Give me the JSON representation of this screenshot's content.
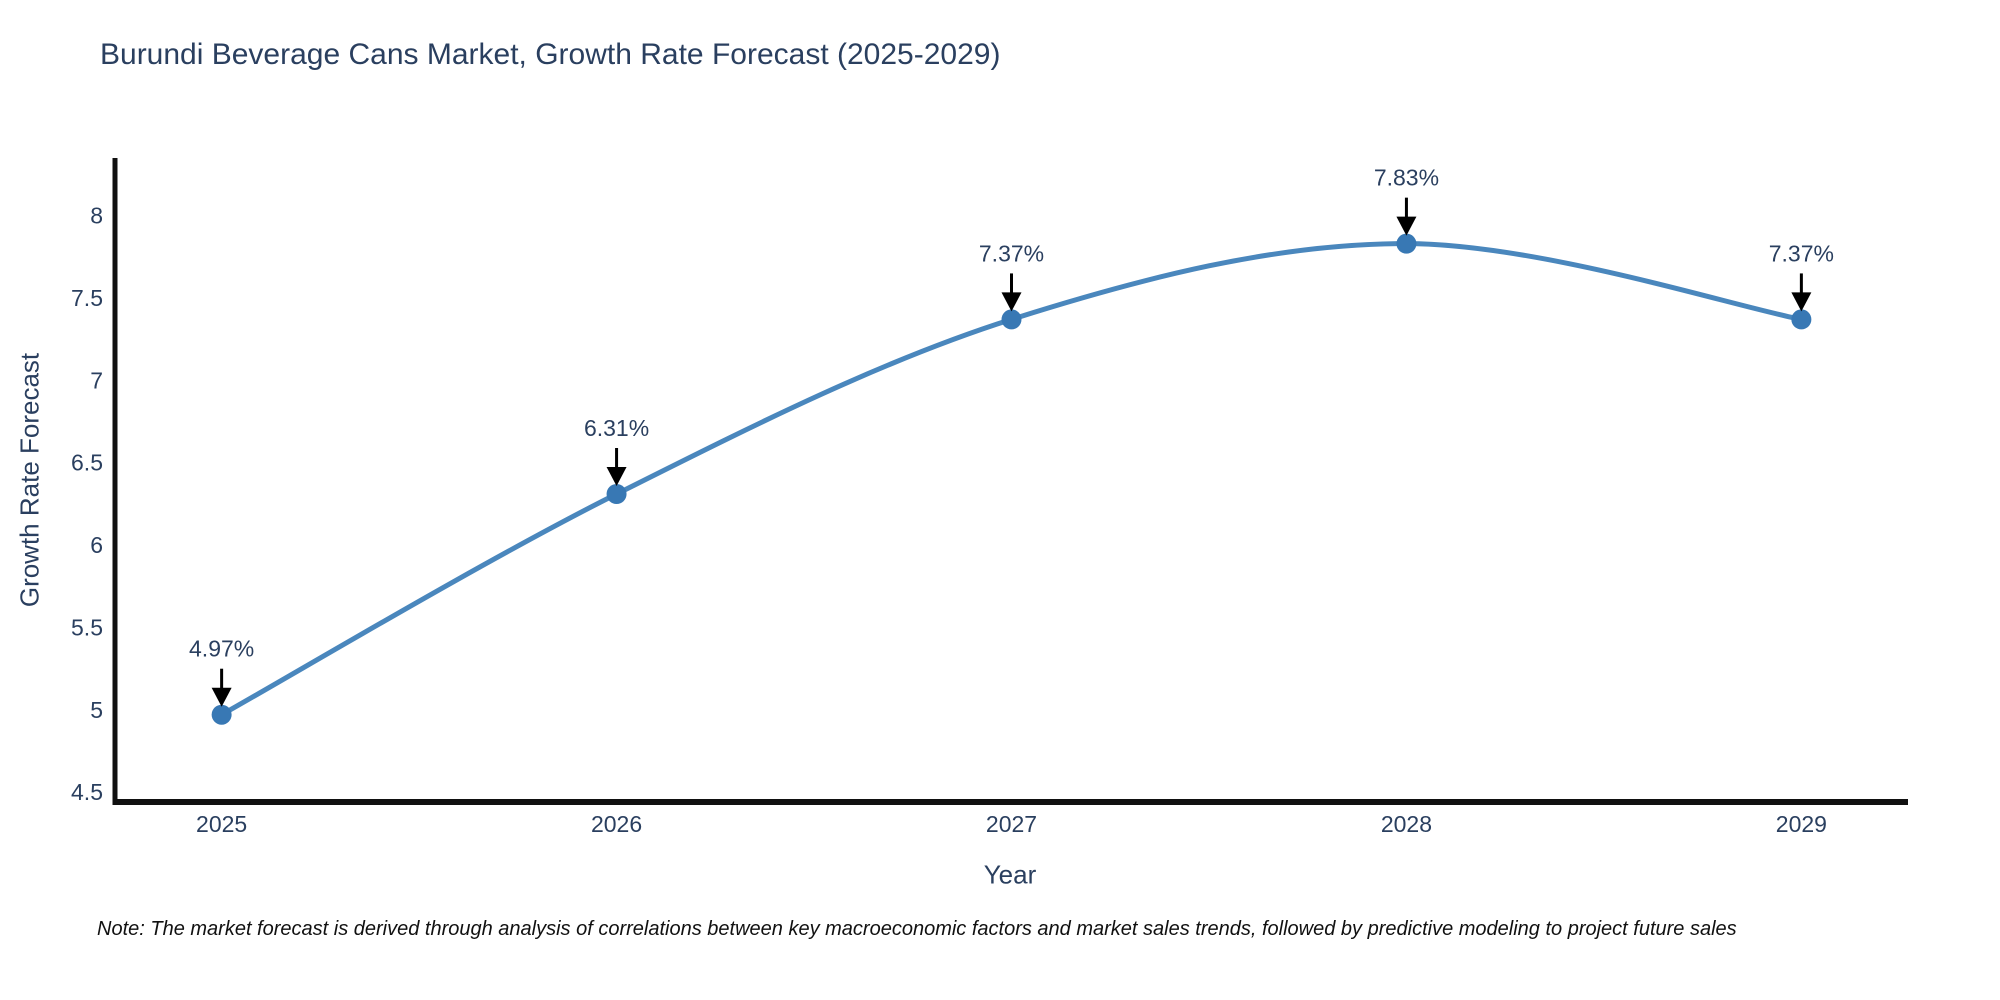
{
  "title": "Burundi Beverage Cans Market, Growth Rate Forecast (2025-2029)",
  "note": "Note: The market forecast is derived through analysis of correlations between key macroeconomic factors and market sales trends, followed by predictive modeling to project future sales",
  "chart_data": {
    "type": "line",
    "title": "Burundi Beverage Cans Market, Growth Rate Forecast (2025-2029)",
    "xlabel": "Year",
    "ylabel": "Growth Rate Forecast",
    "x": [
      2025,
      2026,
      2027,
      2028,
      2029
    ],
    "series": [
      {
        "name": "Growth Rate Forecast",
        "values": [
          4.97,
          6.31,
          7.37,
          7.83,
          7.37
        ]
      }
    ],
    "point_labels": [
      "4.97%",
      "6.31%",
      "7.37%",
      "7.83%",
      "7.37%"
    ],
    "yticks": [
      4.5,
      5,
      5.5,
      6,
      6.5,
      7,
      7.5,
      8
    ],
    "ylim": [
      4.44,
      8.35
    ],
    "xlim": [
      2024.73,
      2029.27
    ],
    "grid": false,
    "legend": "none",
    "line_shape": "spline",
    "colors": {
      "line": "#4a87bd",
      "marker": "#3878b4",
      "axis": "#111111",
      "text": "#2a3f5f",
      "annotation_arrow": "#000000"
    }
  }
}
